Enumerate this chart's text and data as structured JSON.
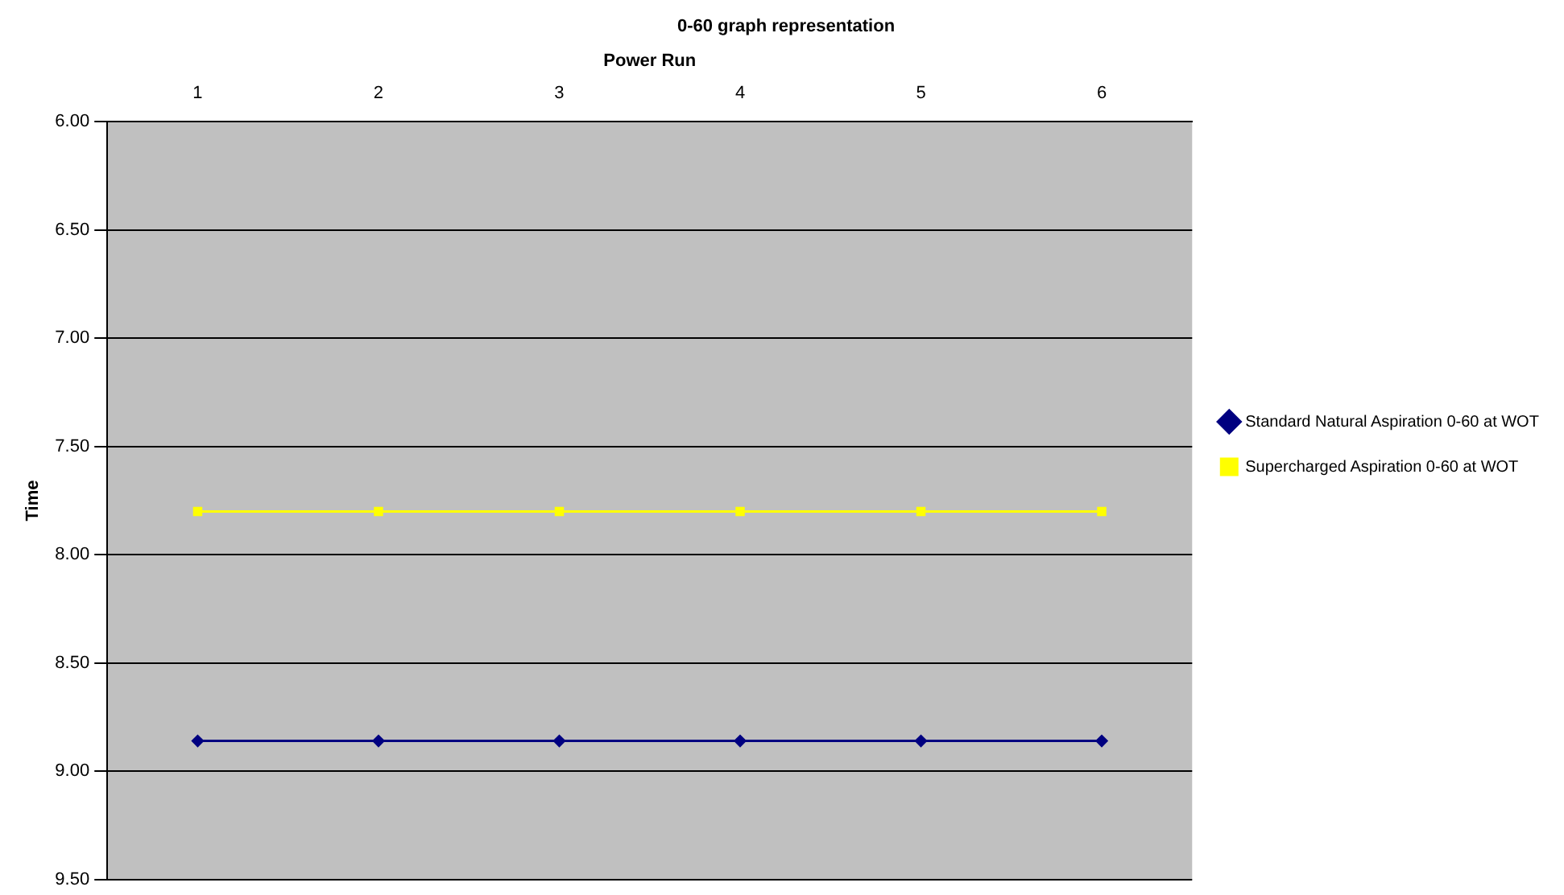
{
  "chart_data": {
    "type": "line",
    "title": "0-60 graph representation",
    "xlabel": "Power Run",
    "ylabel": "Time",
    "categories": [
      "1",
      "2",
      "3",
      "4",
      "5",
      "6"
    ],
    "series": [
      {
        "name": "Standard Natural Aspiration 0-60 at WOT",
        "color": "#000080",
        "marker": "diamond",
        "values": [
          8.86,
          8.86,
          8.86,
          8.86,
          8.86,
          8.86
        ]
      },
      {
        "name": "Supercharged Aspiration 0-60 at WOT",
        "color": "#ffff00",
        "marker": "square",
        "values": [
          7.8,
          7.8,
          7.8,
          7.8,
          7.8,
          7.8
        ]
      }
    ],
    "ylim": [
      9.5,
      6.0
    ],
    "yticks": [
      {
        "value": 6,
        "label": "6.00"
      },
      {
        "value": 6.5,
        "label": "6.50"
      },
      {
        "value": 7,
        "label": "7.00"
      },
      {
        "value": 7.5,
        "label": "7.50"
      },
      {
        "value": 8,
        "label": "8.00"
      },
      {
        "value": 8.5,
        "label": "8.50"
      },
      {
        "value": 9,
        "label": "9.00"
      },
      {
        "value": 9.5,
        "label": "9.50"
      }
    ],
    "grid": "y",
    "legend": "right",
    "line_style": "solid"
  }
}
